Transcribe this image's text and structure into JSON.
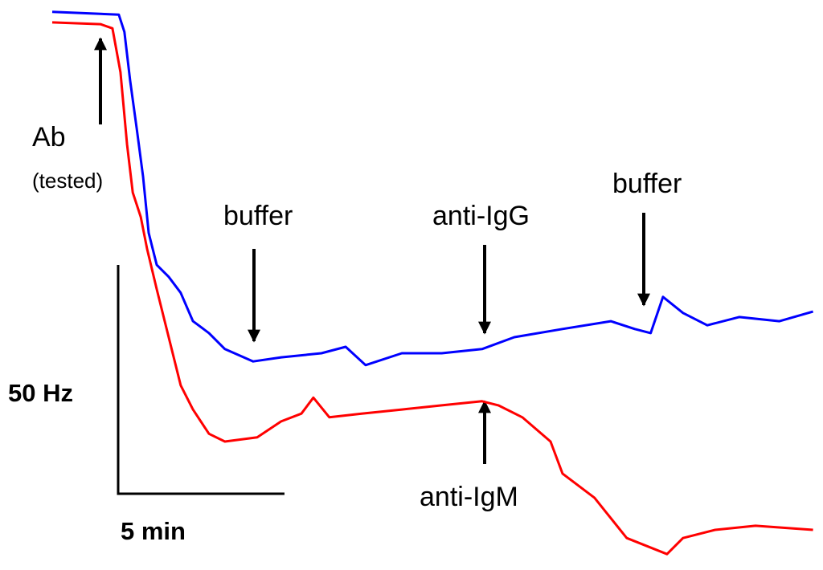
{
  "chart_data": {
    "type": "line",
    "xlim": [
      0,
      23
    ],
    "ylim": [
      -120,
      2
    ],
    "series": [
      {
        "color": "#0000ff",
        "x": [
          0,
          2.0,
          2.17,
          2.34,
          2.54,
          2.73,
          2.9,
          3.14,
          3.5,
          3.86,
          4.23,
          4.71,
          5.19,
          6.04,
          6.88,
          8.09,
          8.82,
          9.42,
          10.51,
          11.71,
          12.92,
          13.89,
          15.34,
          16.79,
          17.51,
          17.99,
          18.36,
          18.96,
          19.69,
          20.65,
          21.86,
          22.87
        ],
        "values": [
          1.8,
          1.2,
          -2.6,
          -13.2,
          -23.7,
          -34.2,
          -46.5,
          -53.5,
          -56.1,
          -59.6,
          -65.8,
          -68.4,
          -71.9,
          -74.6,
          -73.7,
          -72.8,
          -71.4,
          -75.4,
          -72.8,
          -72.8,
          -71.9,
          -69.3,
          -67.5,
          -65.8,
          -67.5,
          -68.4,
          -60.5,
          -64.0,
          -66.7,
          -64.9,
          -65.8,
          -63.7
        ]
      },
      {
        "color": "#ff0000",
        "x": [
          0,
          1.45,
          1.81,
          2.05,
          2.25,
          2.42,
          2.66,
          2.85,
          3.14,
          3.5,
          3.86,
          4.23,
          4.71,
          5.19,
          6.16,
          6.88,
          7.49,
          7.85,
          8.33,
          9.3,
          10.51,
          11.71,
          12.92,
          13.41,
          14.13,
          14.98,
          15.34,
          16.3,
          17.27,
          18.48,
          18.96,
          19.93,
          21.14,
          22.87
        ],
        "values": [
          -0.5,
          -0.9,
          -1.8,
          -11.4,
          -27.2,
          -37.7,
          -43.0,
          -50.0,
          -58.8,
          -69.3,
          -79.8,
          -85.1,
          -90.4,
          -92.1,
          -91.2,
          -87.7,
          -86.0,
          -82.5,
          -86.8,
          -86.0,
          -85.1,
          -84.2,
          -83.3,
          -84.2,
          -86.8,
          -92.1,
          -99.1,
          -104.4,
          -113.2,
          -116.7,
          -113.2,
          -111.4,
          -110.5,
          -111.4
        ]
      }
    ],
    "scale_bars": [
      {
        "label": "50 Hz",
        "value": 50
      },
      {
        "label": "5 min",
        "value": 5
      }
    ],
    "annotations": [
      "Ab",
      "(tested)",
      "buffer",
      "anti-IgG",
      "buffer",
      "anti-IgM"
    ]
  }
}
